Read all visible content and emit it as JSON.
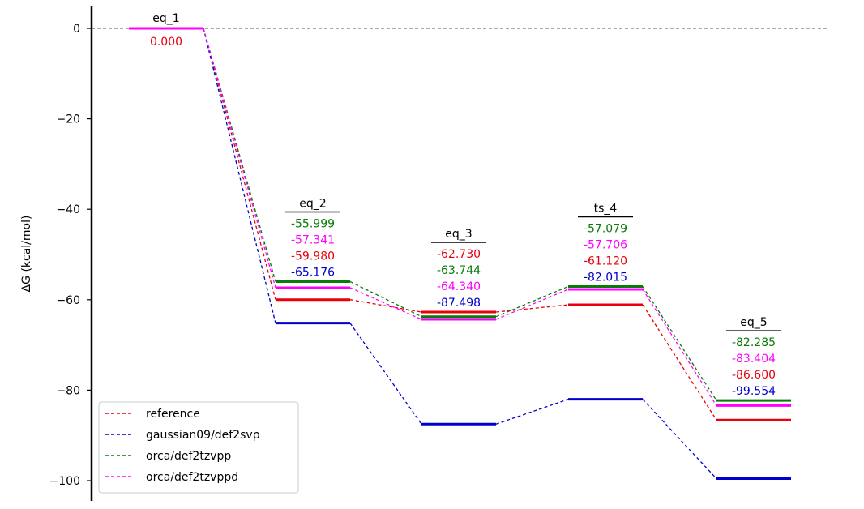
{
  "chart_data": {
    "type": "line",
    "title": "",
    "xlabel": "",
    "ylabel": "ΔG (kcal/mol)",
    "ylim": [
      -105,
      5
    ],
    "yticks": [
      0,
      -20,
      -40,
      -60,
      -80,
      -100
    ],
    "ytick_labels": [
      "0",
      "−20",
      "−40",
      "−60",
      "−80",
      "−100"
    ],
    "grid": false,
    "legend_position": "bottom-left",
    "zero_line": true,
    "categories": [
      "eq_1",
      "eq_2",
      "eq_3",
      "ts_4",
      "eq_5"
    ],
    "series": [
      {
        "name": "reference",
        "color": "#e8000b",
        "values": [
          0.0,
          -59.98,
          -62.73,
          -61.12,
          -86.6
        ]
      },
      {
        "name": "gaussian09/def2svp",
        "color": "#0000cc",
        "values": [
          0.0,
          -65.176,
          -87.498,
          -82.015,
          -99.554
        ]
      },
      {
        "name": "orca/def2tzvpp",
        "color": "#0a7a0a",
        "values": [
          0.0,
          -55.999,
          -63.744,
          -57.079,
          -82.285
        ]
      },
      {
        "name": "orca/def2tzvppd",
        "color": "#ff00ff",
        "values": [
          0.0,
          -57.341,
          -64.34,
          -57.706,
          -83.404
        ]
      }
    ],
    "annotations": [
      {
        "category": "eq_1",
        "labels": [
          {
            "text": "0.000",
            "series": "reference"
          }
        ]
      },
      {
        "category": "eq_2",
        "labels": [
          {
            "text": "-55.999",
            "series": "orca/def2tzvpp"
          },
          {
            "text": "-57.341",
            "series": "orca/def2tzvppd"
          },
          {
            "text": "-59.980",
            "series": "reference"
          },
          {
            "text": "-65.176",
            "series": "gaussian09/def2svp"
          }
        ]
      },
      {
        "category": "eq_3",
        "labels": [
          {
            "text": "-62.730",
            "series": "reference"
          },
          {
            "text": "-63.744",
            "series": "orca/def2tzvpp"
          },
          {
            "text": "-64.340",
            "series": "orca/def2tzvppd"
          },
          {
            "text": "-87.498",
            "series": "gaussian09/def2svp"
          }
        ]
      },
      {
        "category": "ts_4",
        "labels": [
          {
            "text": "-57.079",
            "series": "orca/def2tzvpp"
          },
          {
            "text": "-57.706",
            "series": "orca/def2tzvppd"
          },
          {
            "text": "-61.120",
            "series": "reference"
          },
          {
            "text": "-82.015",
            "series": "gaussian09/def2svp"
          }
        ]
      },
      {
        "category": "eq_5",
        "labels": [
          {
            "text": "-82.285",
            "series": "orca/def2tzvpp"
          },
          {
            "text": "-83.404",
            "series": "orca/def2tzvppd"
          },
          {
            "text": "-86.600",
            "series": "reference"
          },
          {
            "text": "-99.554",
            "series": "gaussian09/def2svp"
          }
        ]
      }
    ]
  }
}
